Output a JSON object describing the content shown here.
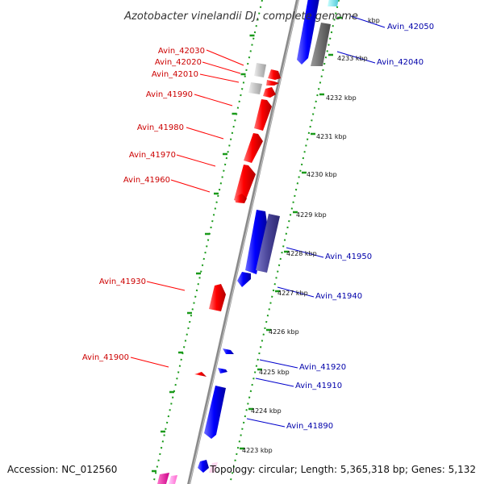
{
  "title": "Azotobacter vinelandii DJ, complete genome",
  "footer": {
    "accession": "Accession: NC_012560",
    "topology": "Topology: circular; Length: 5,365,318 bp; Genes: 5,132"
  },
  "colors": {
    "reverse_strand": "#ff0000",
    "forward_strand": "#0000ff",
    "left_label": "#cc0000",
    "right_label": "#0000aa",
    "ticks": "#1a9a1a",
    "backbone": "#8a8a8a"
  },
  "left_labels": [
    "Avin_42030",
    "Avin_42020",
    "Avin_42010",
    "Avin_41990",
    "Avin_41980",
    "Avin_41970",
    "Avin_41960",
    "Avin_41930",
    "Avin_41900"
  ],
  "right_labels": [
    "Avin_42050",
    "Avin_42040",
    "Avin_41950",
    "Avin_41940",
    "Avin_41920",
    "Avin_41910",
    "Avin_41890"
  ],
  "kbp_ticks": [
    "kbp",
    "4233 kbp",
    "4232 kbp",
    "4231 kbp",
    "4230 kbp",
    "4229 kbp",
    "4228 kbp",
    "4227 kbp",
    "4226 kbp",
    "4225 kbp",
    "4224 kbp",
    "4223 kbp"
  ]
}
